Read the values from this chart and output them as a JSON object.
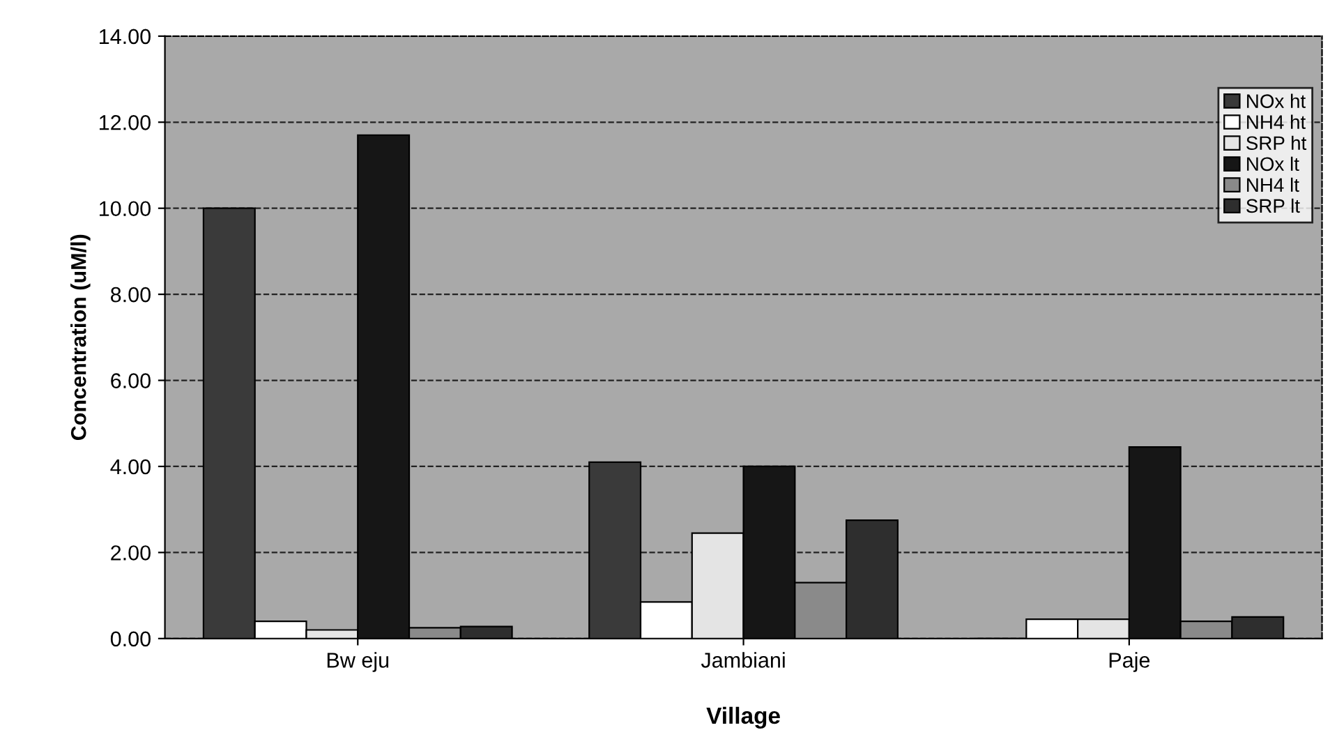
{
  "chart_data": {
    "type": "bar",
    "xlabel": "Village",
    "ylabel": "Concentration (uM/l)",
    "categories": [
      "Bw eju",
      "Jambiani",
      "Paje"
    ],
    "series": [
      {
        "name": "NOx ht",
        "color": "#3a3a3a",
        "values": [
          10.0,
          4.1,
          0
        ]
      },
      {
        "name": "NH4 ht",
        "color": "#ffffff",
        "values": [
          0.4,
          0.85,
          0.45
        ]
      },
      {
        "name": "SRP ht",
        "color": "#e4e4e4",
        "values": [
          0.2,
          2.45,
          0.45
        ]
      },
      {
        "name": "NOx lt",
        "color": "#161616",
        "values": [
          11.7,
          4.0,
          4.45
        ]
      },
      {
        "name": "NH4 lt",
        "color": "#8a8a8a",
        "values": [
          0.25,
          1.3,
          0.4
        ]
      },
      {
        "name": "SRP lt",
        "color": "#2e2e2e",
        "values": [
          0.28,
          2.75,
          0.5
        ]
      }
    ],
    "ylim": [
      0,
      14
    ],
    "yticks": [
      {
        "value": 0,
        "label": "0.00"
      },
      {
        "value": 2,
        "label": "2.00"
      },
      {
        "value": 4,
        "label": "4.00"
      },
      {
        "value": 6,
        "label": "6.00"
      },
      {
        "value": 8,
        "label": "8.00"
      },
      {
        "value": 10,
        "label": "10.00"
      },
      {
        "value": 12,
        "label": "12.00"
      },
      {
        "value": 14,
        "label": "14.00"
      }
    ],
    "grid": "y",
    "legend": "top right"
  }
}
